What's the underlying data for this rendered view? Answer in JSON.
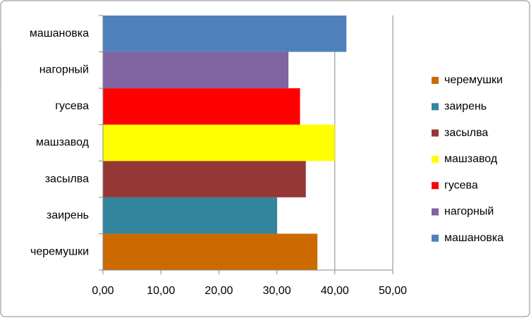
{
  "chart_data": {
    "type": "bar",
    "orientation": "horizontal",
    "categories": [
      "черемушки",
      "заирень",
      "засылва",
      "машзавод",
      "гусева",
      "нагорный",
      "машановка"
    ],
    "values": [
      37,
      30,
      35,
      40,
      34,
      32,
      42
    ],
    "colors": [
      "#cc6a00",
      "#31859c",
      "#953735",
      "#ffff00",
      "#ff0000",
      "#8064a2",
      "#4f81bd"
    ],
    "xlim": [
      0,
      50
    ],
    "xticks": [
      {
        "value": 0,
        "label": "0,00"
      },
      {
        "value": 10,
        "label": "10,00"
      },
      {
        "value": 20,
        "label": "20,00"
      },
      {
        "value": 30,
        "label": "30,00"
      },
      {
        "value": 40,
        "label": "40,00"
      },
      {
        "value": 50,
        "label": "50,00"
      }
    ],
    "grid": true,
    "legend": "right"
  }
}
